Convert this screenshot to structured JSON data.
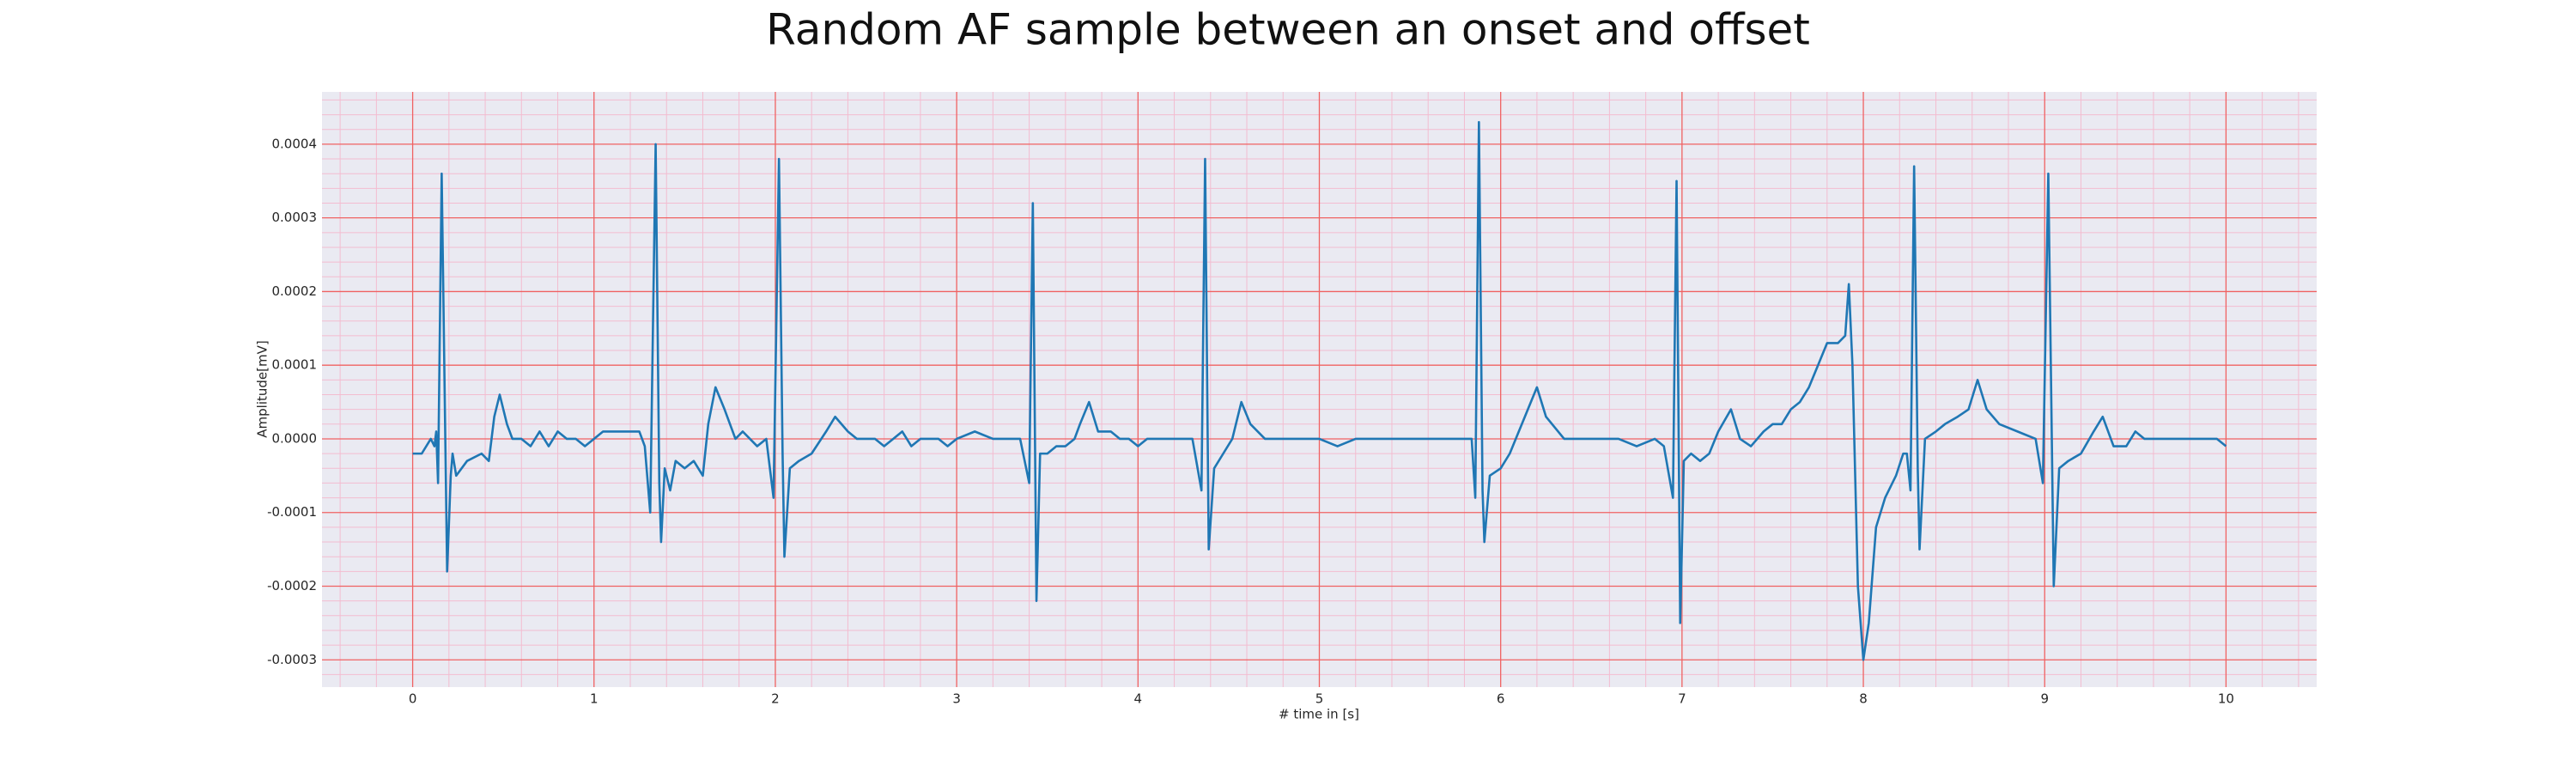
{
  "chart_data": {
    "type": "line",
    "title": "Random AF sample between an onset and offset",
    "xlabel": "# time in [s]",
    "ylabel": "Amplitude[mV]",
    "color": "#1f77b4",
    "grid": true,
    "minor_grid": true,
    "xlim": [
      -0.5,
      10.5
    ],
    "ylim": [
      -0.000337,
      0.000471
    ],
    "xticks": [
      0,
      1,
      2,
      3,
      4,
      5,
      6,
      7,
      8,
      9,
      10
    ],
    "yticks": [
      -0.0003,
      -0.0002,
      -0.0001,
      {
        "value": 0,
        "label": "0.0000"
      },
      0.0001,
      0.0002,
      0.0003,
      0.0004
    ],
    "x": [
      0,
      0.05,
      0.1,
      0.12,
      0.13,
      0.14,
      0.16,
      0.18,
      0.19,
      0.21,
      0.22,
      0.24,
      0.3,
      0.38,
      0.42,
      0.45,
      0.48,
      0.52,
      0.55,
      0.6,
      0.65,
      0.7,
      0.75,
      0.8,
      0.85,
      0.9,
      0.95,
      1.0,
      1.05,
      1.1,
      1.2,
      1.25,
      1.28,
      1.31,
      1.34,
      1.36,
      1.37,
      1.39,
      1.42,
      1.45,
      1.5,
      1.55,
      1.6,
      1.63,
      1.67,
      1.72,
      1.78,
      1.82,
      1.9,
      1.95,
      1.99,
      2.02,
      2.04,
      2.05,
      2.08,
      2.13,
      2.2,
      2.28,
      2.33,
      2.4,
      2.45,
      2.5,
      2.55,
      2.6,
      2.65,
      2.7,
      2.75,
      2.8,
      2.85,
      2.9,
      2.95,
      3.0,
      3.1,
      3.2,
      3.3,
      3.35,
      3.4,
      3.42,
      3.44,
      3.46,
      3.5,
      3.55,
      3.6,
      3.65,
      3.68,
      3.73,
      3.78,
      3.85,
      3.9,
      3.95,
      4.0,
      4.05,
      4.1,
      4.2,
      4.3,
      4.35,
      4.37,
      4.39,
      4.42,
      4.47,
      4.52,
      4.57,
      4.62,
      4.7,
      4.8,
      4.9,
      5.0,
      5.1,
      5.2,
      5.3,
      5.4,
      5.5,
      5.6,
      5.7,
      5.8,
      5.84,
      5.86,
      5.88,
      5.9,
      5.91,
      5.94,
      6.0,
      6.05,
      6.1,
      6.15,
      6.2,
      6.25,
      6.35,
      6.45,
      6.55,
      6.65,
      6.75,
      6.85,
      6.9,
      6.95,
      6.97,
      6.99,
      7.01,
      7.05,
      7.1,
      7.15,
      7.2,
      7.27,
      7.32,
      7.38,
      7.45,
      7.5,
      7.55,
      7.6,
      7.65,
      7.7,
      7.75,
      7.8,
      7.86,
      7.9,
      7.92,
      7.94,
      7.97,
      8.0,
      8.03,
      8.07,
      8.12,
      8.18,
      8.22,
      8.24,
      8.26,
      8.28,
      8.3,
      8.31,
      8.34,
      8.4,
      8.45,
      8.52,
      8.58,
      8.63,
      8.68,
      8.75,
      8.85,
      8.95,
      8.99,
      9.02,
      9.05,
      9.08,
      9.13,
      9.2,
      9.27,
      9.32,
      9.38,
      9.45,
      9.5,
      9.55,
      9.65,
      9.75,
      9.85,
      9.95,
      10.0
    ],
    "values": [
      -2e-05,
      -2e-05,
      0,
      -1e-05,
      1e-05,
      -6e-05,
      0.00036,
      0,
      -0.00018,
      -5e-05,
      -2e-05,
      -5e-05,
      -3e-05,
      -2e-05,
      -3e-05,
      3e-05,
      6e-05,
      2e-05,
      0,
      0,
      -1e-05,
      1e-05,
      -1e-05,
      1e-05,
      0,
      0,
      -1e-05,
      0,
      1e-05,
      1e-05,
      1e-05,
      1e-05,
      -1e-05,
      -0.0001,
      0.0004,
      -6e-05,
      -0.00014,
      -4e-05,
      -7e-05,
      -3e-05,
      -4e-05,
      -3e-05,
      -5e-05,
      2e-05,
      7e-05,
      4e-05,
      0,
      1e-05,
      -1e-05,
      0,
      -8e-05,
      0.00038,
      -2e-05,
      -0.00016,
      -4e-05,
      -3e-05,
      -2e-05,
      1e-05,
      3e-05,
      1e-05,
      0,
      0,
      0,
      -1e-05,
      0,
      1e-05,
      -1e-05,
      0,
      0,
      0,
      -1e-05,
      0,
      1e-05,
      0,
      0,
      0,
      -6e-05,
      0.00032,
      -0.00022,
      -2e-05,
      -2e-05,
      -1e-05,
      -1e-05,
      0,
      2e-05,
      5e-05,
      1e-05,
      1e-05,
      0,
      0,
      -1e-05,
      0,
      0,
      0,
      0,
      -7e-05,
      0.00038,
      -0.00015,
      -4e-05,
      -2e-05,
      0,
      5e-05,
      2e-05,
      0,
      0,
      0,
      0,
      -1e-05,
      0,
      0,
      0,
      0,
      0,
      0,
      0,
      0,
      -8e-05,
      0.00043,
      -7e-05,
      -0.00014,
      -5e-05,
      -4e-05,
      -2e-05,
      1e-05,
      4e-05,
      7e-05,
      3e-05,
      0,
      0,
      0,
      0,
      -1e-05,
      0,
      -1e-05,
      -8e-05,
      0.00035,
      -0.00025,
      -3e-05,
      -2e-05,
      -3e-05,
      -2e-05,
      1e-05,
      4e-05,
      0,
      -1e-05,
      1e-05,
      2e-05,
      2e-05,
      4e-05,
      5e-05,
      7e-05,
      0.0001,
      0.00013,
      0.00013,
      0.00014,
      0.00021,
      0.0001,
      -0.0002,
      -0.0003,
      -0.00025,
      -0.00012,
      -8e-05,
      -5e-05,
      -2e-05,
      -2e-05,
      -7e-05,
      0.00037,
      -4e-05,
      -0.00015,
      0,
      1e-05,
      2e-05,
      3e-05,
      4e-05,
      8e-05,
      4e-05,
      2e-05,
      1e-05,
      0,
      -6e-05,
      0.00036,
      -0.0002,
      -4e-05,
      -3e-05,
      -2e-05,
      1e-05,
      3e-05,
      -1e-05,
      -1e-05,
      1e-05,
      0,
      0,
      0,
      0,
      0,
      -1e-05
    ]
  }
}
